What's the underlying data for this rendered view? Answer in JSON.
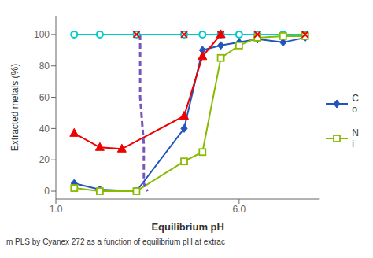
{
  "chart_data": {
    "type": "line",
    "xlabel": "Equilibrium pH",
    "ylabel": "Extracted metals (%)",
    "caption": "m PLS by Cyanex 272 as a function of equilibrium pH  at extrac",
    "xlim": [
      1.0,
      8.2
    ],
    "xticks": [
      {
        "value": 1.0,
        "label": "1.0"
      },
      {
        "value": 6.0,
        "label": "6.0"
      }
    ],
    "ylim": [
      -5,
      112
    ],
    "yticks": [
      0,
      20,
      40,
      60,
      80,
      100
    ],
    "grid": false,
    "legend": "right",
    "series": [
      {
        "color": "#00CCCC",
        "marker": "circle_open",
        "line_style": "solid",
        "x": [
          1.5,
          2.2,
          3.2,
          4.5,
          5.0,
          5.5,
          6.0,
          6.5,
          7.2,
          7.8
        ],
        "values": [
          100,
          100,
          100,
          100,
          100,
          100,
          100,
          100,
          100,
          100
        ]
      },
      {
        "name": "C\no",
        "color": "#2255BB",
        "marker": "diamond",
        "line_style": "solid",
        "x": [
          1.5,
          2.2,
          3.2,
          4.5,
          5.0,
          5.5,
          6.0,
          6.5,
          7.2,
          7.8
        ],
        "values": [
          5,
          1,
          0,
          40,
          90,
          93,
          95,
          97,
          95,
          98
        ]
      },
      {
        "name": "N\ni",
        "color": "#88BB00",
        "marker": "square_open",
        "line_style": "solid",
        "x": [
          1.5,
          2.2,
          3.2,
          4.5,
          5.0,
          5.5,
          6.0,
          6.5,
          7.2,
          7.8
        ],
        "values": [
          2,
          0,
          0,
          19,
          25,
          85,
          93,
          98,
          99,
          99
        ]
      },
      {
        "color": "#EE0000",
        "marker": "triangle",
        "line_style": "solid",
        "x": [
          1.5,
          2.2,
          2.8,
          4.5,
          5.0,
          5.5
        ],
        "values": [
          37,
          28,
          27,
          48,
          86,
          100
        ]
      },
      {
        "color": "#7755BB",
        "marker": "none",
        "line_style": "dashed",
        "x": [
          3.3,
          3.3,
          3.4,
          3.4,
          3.5
        ],
        "values": [
          100,
          60,
          30,
          5,
          0
        ]
      },
      {
        "color": "#EE0000",
        "marker": "x",
        "line_style": "none",
        "x": [
          3.2,
          4.5,
          5.5,
          6.5,
          7.8
        ],
        "values": [
          100,
          100,
          100,
          100,
          100
        ]
      }
    ]
  }
}
